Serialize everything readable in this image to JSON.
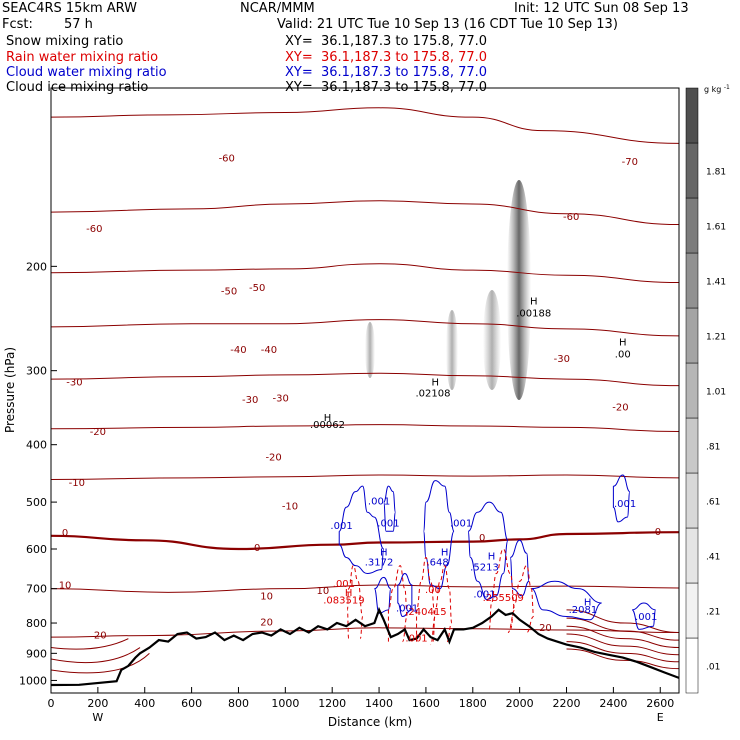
{
  "header": {
    "model": "SEAC4RS 15km ARW",
    "org": "NCAR/MMM",
    "init": "Init: 12 UTC Sun 08 Sep 13",
    "fcst_label": "Fcst:",
    "fcst_value": "57 h",
    "valid": "Valid: 21 UTC Tue 10 Sep 13 (16 CDT Tue 10 Sep 13)",
    "fields": [
      {
        "name": "Snow mixing ratio",
        "xy": "XY=  36.1,187.3 to 175.8, 77.0",
        "color": "#000000"
      },
      {
        "name": "Rain water mixing ratio",
        "xy": "XY=  36.1,187.3 to 175.8, 77.0",
        "color": "#dd0000"
      },
      {
        "name": "Cloud water mixing ratio",
        "xy": "XY=  36.1,187.3 to 175.8, 77.0",
        "color": "#0000cc"
      },
      {
        "name": "Cloud ice mixing ratio",
        "xy": "XY=  36.1,187.3 to 175.8, 77.0",
        "color": "#000000"
      }
    ]
  },
  "chart_data": {
    "type": "contour",
    "xlabel": "Distance (km)",
    "ylabel": "Pressure (hPa)",
    "x_ticks": [
      0,
      200,
      400,
      600,
      800,
      1000,
      1200,
      1400,
      1600,
      1800,
      2000,
      2200,
      2400,
      2600
    ],
    "y_ticks": [
      200,
      300,
      400,
      500,
      600,
      700,
      800,
      900,
      1000
    ],
    "xlim": [
      0,
      2680
    ],
    "ylim": [
      1050,
      100
    ],
    "y_scale": "log",
    "x_end_labels": {
      "left": "W",
      "right": "E"
    },
    "colorbar": {
      "unit": "g kg",
      "unit_exponent": "-1",
      "labels": [
        ".01",
        ".21",
        ".41",
        ".61",
        ".81",
        "1.01",
        "1.21",
        "1.41",
        "1.61",
        "1.81"
      ],
      "colors": [
        "#ffffff",
        "#f2f2f2",
        "#e5e5e5",
        "#d8d8d8",
        "#c8c8c8",
        "#b6b6b6",
        "#a4a4a4",
        "#919191",
        "#7c7c7c",
        "#666666",
        "#4f4f4f"
      ]
    },
    "temperature_labels_C": [
      {
        "text": "-70",
        "x": 2470,
        "p": 135
      },
      {
        "text": "-60",
        "x": 750,
        "p": 133
      },
      {
        "text": "-60",
        "x": 2220,
        "p": 167
      },
      {
        "text": "-60",
        "x": 185,
        "p": 175
      },
      {
        "text": "-50",
        "x": 760,
        "p": 223
      },
      {
        "text": "-50",
        "x": 880,
        "p": 220
      },
      {
        "text": "-40",
        "x": 800,
        "p": 280
      },
      {
        "text": "-40",
        "x": 930,
        "p": 280
      },
      {
        "text": "-30",
        "x": 100,
        "p": 318
      },
      {
        "text": "-30",
        "x": 850,
        "p": 340
      },
      {
        "text": "-30",
        "x": 980,
        "p": 338
      },
      {
        "text": "-30",
        "x": 2180,
        "p": 290
      },
      {
        "text": "-20",
        "x": 200,
        "p": 385
      },
      {
        "text": "-20",
        "x": 950,
        "p": 425
      },
      {
        "text": "-20",
        "x": 2430,
        "p": 350
      },
      {
        "text": "-10",
        "x": 110,
        "p": 470
      },
      {
        "text": "-10",
        "x": 1020,
        "p": 515
      },
      {
        "text": "0",
        "x": 60,
        "p": 570
      },
      {
        "text": "0",
        "x": 880,
        "p": 605
      },
      {
        "text": "0",
        "x": 1840,
        "p": 582
      },
      {
        "text": "0",
        "x": 2590,
        "p": 568
      },
      {
        "text": "10",
        "x": 60,
        "p": 700
      },
      {
        "text": "10",
        "x": 920,
        "p": 730
      },
      {
        "text": "10",
        "x": 1160,
        "p": 715
      },
      {
        "text": "20",
        "x": 210,
        "p": 850
      },
      {
        "text": "20",
        "x": 920,
        "p": 808
      },
      {
        "text": "20",
        "x": 2110,
        "p": 825
      }
    ],
    "snow_max_labels": [
      {
        "text": ".00062",
        "x": 1180,
        "p": 375
      },
      {
        "text": ".02108",
        "x": 1630,
        "p": 332
      },
      {
        "text": ".00188",
        "x": 2060,
        "p": 243
      },
      {
        "text": ".00",
        "x": 2440,
        "p": 285
      }
    ],
    "rain_labels": [
      {
        "text": ".001",
        "x": 1250,
        "p": 695
      },
      {
        "text": ".083519",
        "x": 1250,
        "p": 742
      },
      {
        "text": ".240415",
        "x": 1600,
        "p": 775
      },
      {
        "text": ".001",
        "x": 1560,
        "p": 860
      },
      {
        "text": ".255509",
        "x": 1930,
        "p": 735
      },
      {
        "text": ".00",
        "x": 1630,
        "p": 712
      }
    ],
    "cloud_water_labels": [
      {
        "text": ".001",
        "x": 1240,
        "p": 555
      },
      {
        "text": ".001",
        "x": 1400,
        "p": 505
      },
      {
        "text": ".001",
        "x": 1440,
        "p": 550
      },
      {
        "text": ".3172",
        "x": 1400,
        "p": 640
      },
      {
        "text": ".648",
        "x": 1650,
        "p": 640
      },
      {
        "text": ".001",
        "x": 1750,
        "p": 550
      },
      {
        "text": ".5213",
        "x": 1850,
        "p": 652
      },
      {
        "text": ".001",
        "x": 1850,
        "p": 725
      },
      {
        "text": ".001",
        "x": 1520,
        "p": 765
      },
      {
        "text": ".001",
        "x": 2450,
        "p": 510
      },
      {
        "text": ".2081",
        "x": 2270,
        "p": 770
      },
      {
        "text": ".001",
        "x": 2540,
        "p": 790
      }
    ],
    "h_markers": [
      {
        "x": 1180,
        "p": 365,
        "color": "#000000"
      },
      {
        "x": 1640,
        "p": 318,
        "color": "#000000"
      },
      {
        "x": 2060,
        "p": 232,
        "color": "#000000"
      },
      {
        "x": 2440,
        "p": 272,
        "color": "#000000"
      },
      {
        "x": 1270,
        "p": 720,
        "color": "#dd0000"
      },
      {
        "x": 1420,
        "p": 615,
        "color": "#0000cc"
      },
      {
        "x": 1680,
        "p": 615,
        "color": "#0000cc"
      },
      {
        "x": 1880,
        "p": 625,
        "color": "#0000cc"
      },
      {
        "x": 2290,
        "p": 748,
        "color": "#0000cc"
      }
    ],
    "terrain_surface": {
      "x": [
        0,
        120,
        280,
        300,
        330,
        360,
        380,
        420,
        460,
        500,
        540,
        580,
        620,
        660,
        700,
        740,
        780,
        820,
        860,
        900,
        940,
        980,
        1020,
        1060,
        1100,
        1140,
        1180,
        1220,
        1260,
        1300,
        1340,
        1380,
        1400,
        1420,
        1450,
        1480,
        1510,
        1530,
        1560,
        1590,
        1620,
        1650,
        1680,
        1700,
        1720,
        1760,
        1800,
        1840,
        1880,
        1910,
        1940,
        1970,
        2000,
        2040,
        2080,
        2120,
        2160,
        2200,
        2260,
        2320,
        2380,
        2440,
        2500,
        2560,
        2620,
        2680
      ],
      "p": [
        1018,
        1017,
        1003,
        960,
        945,
        915,
        900,
        880,
        855,
        860,
        835,
        830,
        850,
        845,
        830,
        855,
        840,
        855,
        835,
        830,
        840,
        820,
        835,
        815,
        830,
        810,
        820,
        800,
        810,
        790,
        810,
        800,
        760,
        790,
        845,
        835,
        820,
        855,
        850,
        820,
        845,
        855,
        820,
        860,
        820,
        820,
        815,
        800,
        780,
        760,
        775,
        770,
        790,
        810,
        835,
        850,
        860,
        870,
        880,
        895,
        905,
        915,
        930,
        950,
        970,
        990
      ]
    },
    "temperature_isotherms_C": [
      {
        "t": -70,
        "pts": [
          [
            0,
            112
          ],
          [
            500,
            111
          ],
          [
            1000,
            110
          ],
          [
            1400,
            108
          ],
          [
            1800,
            112
          ],
          [
            2100,
            118
          ],
          [
            2680,
            124
          ]
        ]
      },
      {
        "t": -60,
        "pts": [
          [
            0,
            162
          ],
          [
            600,
            160
          ],
          [
            1000,
            157
          ],
          [
            1400,
            155
          ],
          [
            1800,
            157
          ],
          [
            2200,
            163
          ],
          [
            2680,
            170
          ]
        ]
      },
      {
        "t": -50,
        "pts": [
          [
            0,
            205
          ],
          [
            600,
            203
          ],
          [
            1000,
            202
          ],
          [
            1400,
            198
          ],
          [
            1800,
            203
          ],
          [
            2200,
            207
          ],
          [
            2680,
            213
          ]
        ]
      },
      {
        "t": -40,
        "pts": [
          [
            0,
            253
          ],
          [
            600,
            250
          ],
          [
            1000,
            250
          ],
          [
            1400,
            246
          ],
          [
            1800,
            250
          ],
          [
            2200,
            255
          ],
          [
            2680,
            262
          ]
        ]
      },
      {
        "t": -30,
        "pts": [
          [
            0,
            310
          ],
          [
            600,
            307
          ],
          [
            1000,
            305
          ],
          [
            1400,
            303
          ],
          [
            1800,
            306
          ],
          [
            2200,
            310
          ],
          [
            2680,
            318
          ]
        ]
      },
      {
        "t": -20,
        "pts": [
          [
            0,
            376
          ],
          [
            600,
            374
          ],
          [
            1000,
            372
          ],
          [
            1400,
            370
          ],
          [
            1800,
            372
          ],
          [
            2200,
            374
          ],
          [
            2680,
            380
          ]
        ]
      },
      {
        "t": -10,
        "pts": [
          [
            0,
            458
          ],
          [
            600,
            455
          ],
          [
            1000,
            453
          ],
          [
            1400,
            450
          ],
          [
            1800,
            452
          ],
          [
            2200,
            450
          ],
          [
            2680,
            455
          ]
        ]
      },
      {
        "t": 0,
        "pts": [
          [
            0,
            570
          ],
          [
            400,
            580
          ],
          [
            800,
            600
          ],
          [
            1200,
            590
          ],
          [
            1400,
            585
          ],
          [
            1800,
            583
          ],
          [
            2000,
            578
          ],
          [
            2200,
            566
          ],
          [
            2680,
            562
          ]
        ]
      },
      {
        "t": 10,
        "pts": [
          [
            0,
            700
          ],
          [
            500,
            710
          ],
          [
            1000,
            700
          ],
          [
            1400,
            690
          ],
          [
            1800,
            695
          ],
          [
            2200,
            693
          ],
          [
            2680,
            698
          ]
        ]
      },
      {
        "t": 20,
        "pts": [
          [
            0,
            845
          ],
          [
            400,
            840
          ],
          [
            1000,
            825
          ],
          [
            1400,
            815
          ],
          [
            1800,
            818
          ],
          [
            2200,
            822
          ],
          [
            2680,
            830
          ]
        ]
      }
    ]
  }
}
